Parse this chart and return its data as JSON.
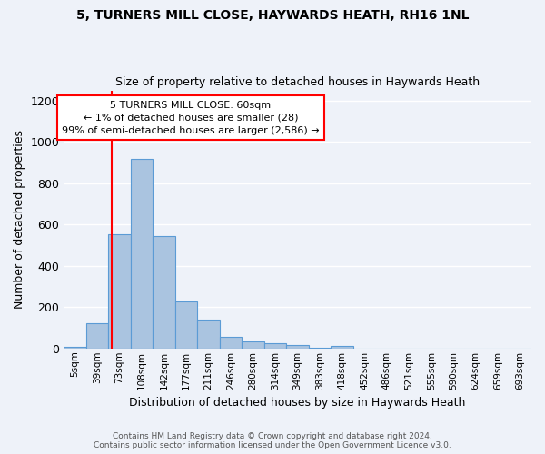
{
  "title_line1": "5, TURNERS MILL CLOSE, HAYWARDS HEATH, RH16 1NL",
  "title_line2": "Size of property relative to detached houses in Haywards Heath",
  "xlabel": "Distribution of detached houses by size in Haywards Heath",
  "ylabel": "Number of detached properties",
  "footer_line1": "Contains HM Land Registry data © Crown copyright and database right 2024.",
  "footer_line2": "Contains public sector information licensed under the Open Government Licence v3.0.",
  "bar_labels": [
    "5sqm",
    "39sqm",
    "73sqm",
    "108sqm",
    "142sqm",
    "177sqm",
    "211sqm",
    "246sqm",
    "280sqm",
    "314sqm",
    "349sqm",
    "383sqm",
    "418sqm",
    "452sqm",
    "486sqm",
    "521sqm",
    "555sqm",
    "590sqm",
    "624sqm",
    "659sqm",
    "693sqm"
  ],
  "bar_values": [
    8,
    120,
    555,
    920,
    545,
    228,
    140,
    58,
    35,
    25,
    18,
    5,
    10,
    0,
    0,
    0,
    0,
    0,
    0,
    0,
    0
  ],
  "bar_color": "#aac4e0",
  "bar_edgecolor": "#5b9bd5",
  "ylim": [
    0,
    1250
  ],
  "yticks": [
    0,
    200,
    400,
    600,
    800,
    1000,
    1200
  ],
  "red_line_x": 1.65,
  "annotation_text": "5 TURNERS MILL CLOSE: 60sqm\n← 1% of detached houses are smaller (28)\n99% of semi-detached houses are larger (2,586) →",
  "background_color": "#eef2f9",
  "grid_color": "#ffffff"
}
